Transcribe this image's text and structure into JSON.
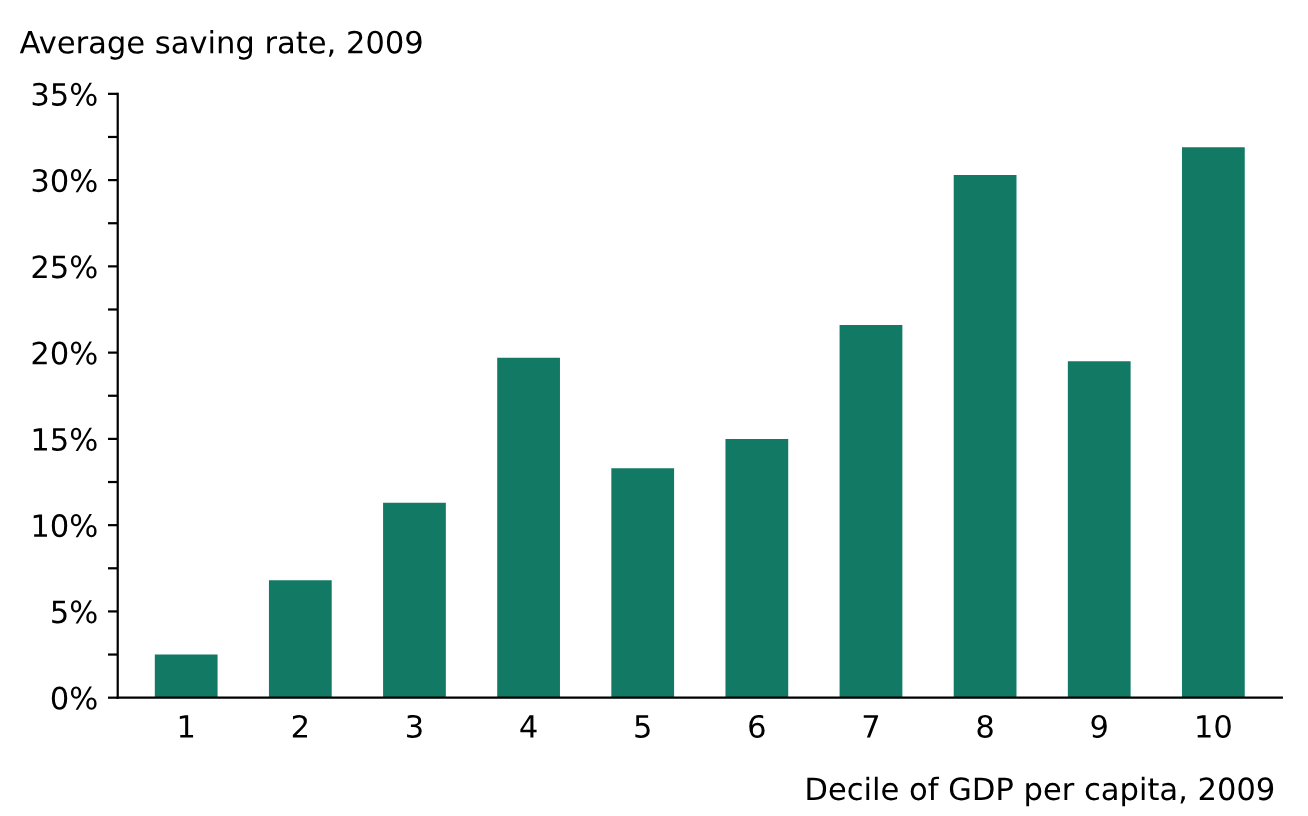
{
  "chart_data": {
    "type": "bar",
    "ylabel": "Average saving rate, 2009",
    "xlabel": "Decile of GDP per capita, 2009",
    "categories": [
      "1",
      "2",
      "3",
      "4",
      "5",
      "6",
      "7",
      "8",
      "9",
      "10"
    ],
    "values": [
      2.5,
      6.8,
      11.3,
      19.7,
      13.3,
      15,
      21.6,
      30.3,
      19.5,
      31.9
    ],
    "color": "#127a64",
    "ylim": [
      0,
      35
    ],
    "yticks": [
      {
        "value": 0,
        "label": "0%"
      },
      {
        "value": 2.5,
        "label": null
      },
      {
        "value": 5,
        "label": "5%"
      },
      {
        "value": 7.5,
        "label": null
      },
      {
        "value": 10,
        "label": "10%"
      },
      {
        "value": 12.5,
        "label": null
      },
      {
        "value": 15,
        "label": "15%"
      },
      {
        "value": 17.5,
        "label": null
      },
      {
        "value": 20,
        "label": "20%"
      },
      {
        "value": 22.5,
        "label": null
      },
      {
        "value": 25,
        "label": "25%"
      },
      {
        "value": 27.5,
        "label": null
      },
      {
        "value": 30,
        "label": "30%"
      },
      {
        "value": 32.5,
        "label": null
      },
      {
        "value": 35,
        "label": "35%"
      }
    ],
    "grid": false
  }
}
